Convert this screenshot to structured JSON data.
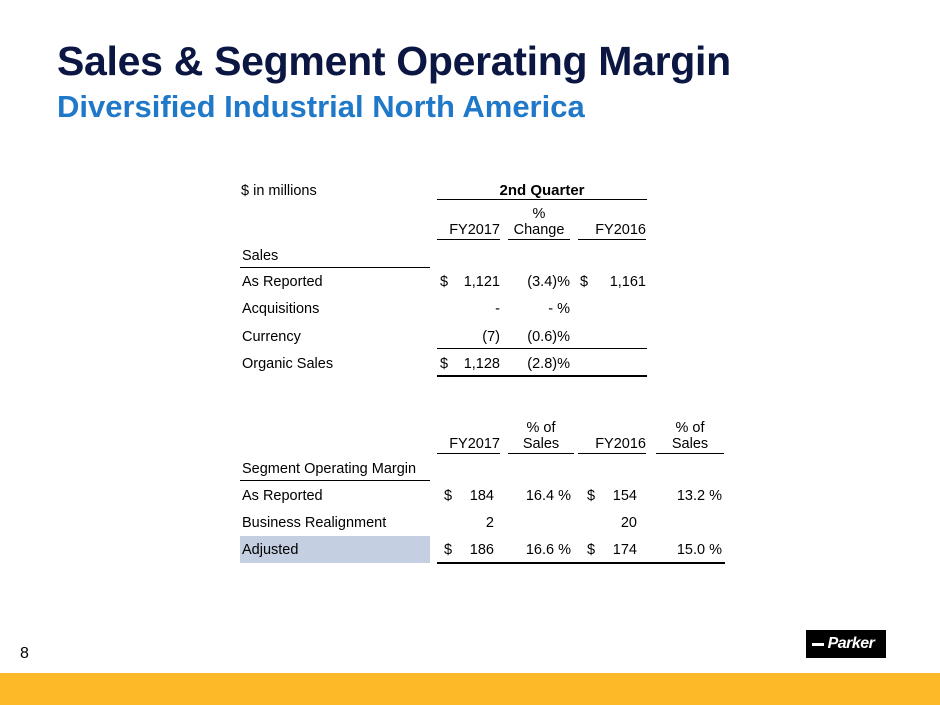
{
  "header": {
    "title": "Sales & Segment Operating Margin",
    "subtitle": "Diversified Industrial North America"
  },
  "sales_table": {
    "units_label": "$ in millions",
    "period_header": "2nd Quarter",
    "col_fy2017": "FY2017",
    "col_change_line1": "%",
    "col_change_line2": "Change",
    "col_fy2016": "FY2016",
    "section_label": "Sales",
    "rows": [
      {
        "label": "As Reported",
        "cur": "$",
        "fy2017": "1,121",
        "change": "(3.4)%",
        "cur16": "$",
        "fy2016": "1,161"
      },
      {
        "label": "Acquisitions",
        "cur": "",
        "fy2017": "-",
        "change": "- %",
        "cur16": "",
        "fy2016": ""
      },
      {
        "label": "Currency",
        "cur": "",
        "fy2017": "(7)",
        "change": "(0.6)%",
        "cur16": "",
        "fy2016": ""
      },
      {
        "label": "Organic Sales",
        "cur": "$",
        "fy2017": "1,128",
        "change": "(2.8)%",
        "cur16": "",
        "fy2016": ""
      }
    ]
  },
  "margin_table": {
    "col_fy2017": "FY2017",
    "col_pct_line1": "% of",
    "col_pct_line2": "Sales",
    "col_fy2016": "FY2016",
    "col_pct16_line1": "% of",
    "col_pct16_line2": "Sales",
    "section_label": "Segment Operating Margin",
    "rows": [
      {
        "label": "As Reported",
        "cur": "$",
        "fy2017": "184",
        "pct17": "16.4 %",
        "cur16": "$",
        "fy2016": "154",
        "pct16": "13.2 %"
      },
      {
        "label": "Business Realignment",
        "cur": "",
        "fy2017": "2",
        "pct17": "",
        "cur16": "",
        "fy2016": "20",
        "pct16": ""
      },
      {
        "label": "Adjusted",
        "cur": "$",
        "fy2017": "186",
        "pct17": "16.6 %",
        "cur16": "$",
        "fy2016": "174",
        "pct16": "15.0 %"
      }
    ]
  },
  "footer": {
    "page_number": "8",
    "logo_text": "Parker",
    "bar_color": "#fdb927"
  }
}
